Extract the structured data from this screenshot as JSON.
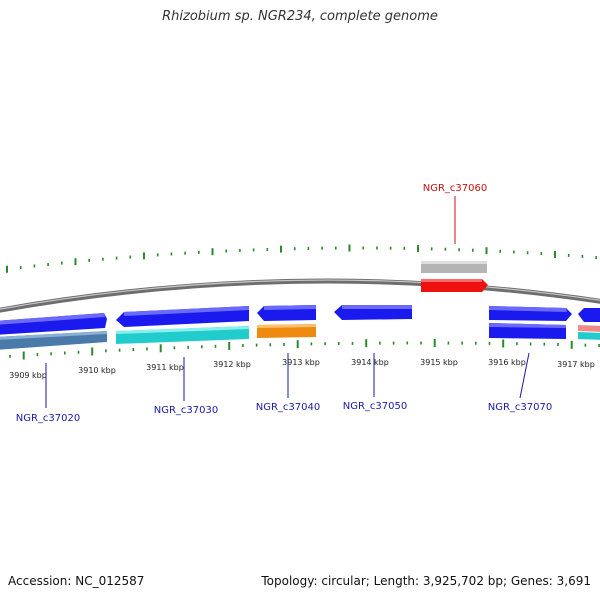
{
  "title": "Rhizobium sp. NGR234, complete genome",
  "footer": {
    "accession": "Accession: NC_012587",
    "topology": "Topology: circular; Length: 3,925,702 bp; Genes: 3,691"
  },
  "colors": {
    "backbone": "#8a8a8a",
    "tick": "#2a8a2a",
    "cds_forward": "#1a1aee",
    "cds_reverse": "#1a1aee",
    "gene_label": "#1a1aa8",
    "gene_label_highlight": "#cc1111",
    "highlight_gene": "#ee1111",
    "highlight_gene_shadow": "#b4b4b4",
    "cyan": "#22cccc",
    "steelblue": "#4a7aaa",
    "orange": "#ee8a10",
    "pink": "#ee8a8a"
  },
  "scale": {
    "unit": "kbp",
    "labels": [
      "3909 kbp",
      "3910 kbp",
      "3911 kbp",
      "3912 kbp",
      "3913 kbp",
      "3914 kbp",
      "3915 kbp",
      "3916 kbp",
      "3917 kbp"
    ],
    "positions_kbp": [
      3909,
      3910,
      3911,
      3912,
      3913,
      3914,
      3915,
      3916,
      3917
    ]
  },
  "genes": [
    {
      "name": "NGR_c37020",
      "highlight": false
    },
    {
      "name": "NGR_c37030",
      "highlight": false
    },
    {
      "name": "NGR_c37040",
      "highlight": false
    },
    {
      "name": "NGR_c37050",
      "highlight": false
    },
    {
      "name": "NGR_c37060",
      "highlight": true
    },
    {
      "name": "NGR_c37070",
      "highlight": false
    }
  ]
}
